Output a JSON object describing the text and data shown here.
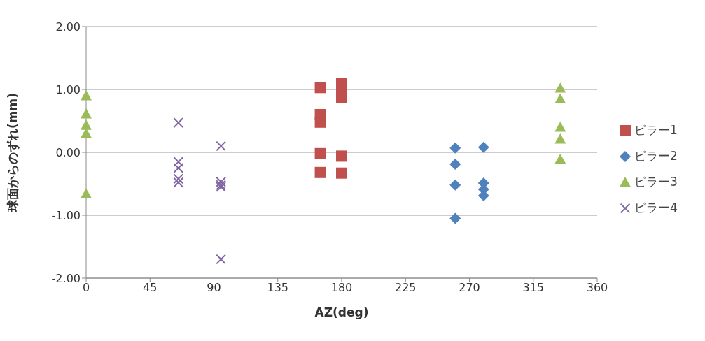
{
  "chart_data": {
    "type": "scatter",
    "xlabel": "AZ(deg)",
    "ylabel": "球面からのずれ(mm)",
    "xlim": [
      0,
      360
    ],
    "xticks": [
      0,
      45,
      90,
      135,
      180,
      225,
      270,
      315,
      360
    ],
    "ylim": [
      -2,
      2
    ],
    "yticks": [
      {
        "value": -2,
        "label": "-2.00"
      },
      {
        "value": -1,
        "label": "-1.00"
      },
      {
        "value": 0,
        "label": "0.00"
      },
      {
        "value": 1,
        "label": "1.00"
      },
      {
        "value": 2,
        "label": "2.00"
      }
    ],
    "grid": "y",
    "legend": "right",
    "series": [
      {
        "name": "ピラー1",
        "color": "#c0504d",
        "marker": "square",
        "x": [
          165,
          165,
          165,
          165,
          165,
          180,
          180,
          180,
          180,
          180
        ],
        "values": [
          1.03,
          0.6,
          0.48,
          -0.02,
          -0.32,
          1.1,
          0.98,
          0.87,
          -0.06,
          -0.33
        ]
      },
      {
        "name": "ピラー2",
        "color": "#4f81bd",
        "marker": "diamond",
        "x": [
          260,
          260,
          260,
          260,
          280,
          280,
          280,
          280
        ],
        "values": [
          0.07,
          -0.19,
          -0.52,
          -1.05,
          0.08,
          -0.49,
          -0.59,
          -0.69
        ]
      },
      {
        "name": "ピラー3",
        "color": "#9bbb59",
        "marker": "triangle",
        "x": [
          0,
          0,
          0,
          0,
          0,
          334,
          334,
          334,
          334,
          334
        ],
        "values": [
          0.9,
          0.61,
          0.43,
          0.3,
          -0.66,
          1.02,
          0.85,
          0.4,
          0.21,
          -0.11
        ]
      },
      {
        "name": "ピラー4",
        "color": "#8064a2",
        "marker": "cross",
        "x": [
          65,
          65,
          65,
          65,
          65,
          95,
          95,
          95,
          95,
          95
        ],
        "values": [
          0.47,
          -0.15,
          -0.25,
          -0.42,
          -0.48,
          0.1,
          -0.47,
          -0.52,
          -0.55,
          -1.7
        ]
      }
    ]
  }
}
